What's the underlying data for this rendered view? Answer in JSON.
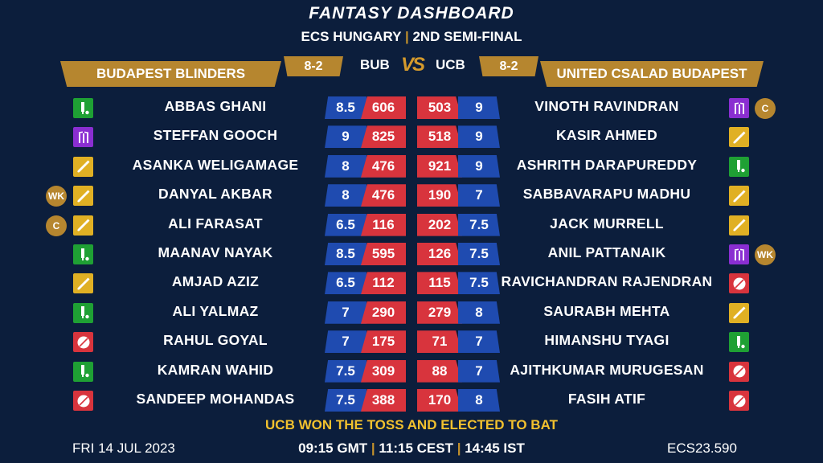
{
  "header": {
    "title": "FANTASY DASHBOARD",
    "event": "ECS HUNGARY",
    "separator": "|",
    "stage": "2ND SEMI-FINAL"
  },
  "colors": {
    "background": "#0c1e3c",
    "gold": "#b6862f",
    "credit_blue": "#1f4bb0",
    "points_red": "#d8343d",
    "toss_yellow": "#f2c12e",
    "role_batter": "#e0b024",
    "role_bowler": "#d8343d",
    "role_allrounder": "#1fa034",
    "role_keeper": "#8a2ed1"
  },
  "teams": {
    "left": {
      "name": "BUDAPEST BLINDERS",
      "abbr": "BUB",
      "record": "8-2"
    },
    "right": {
      "name": "UNITED CSALAD BUDAPEST",
      "abbr": "UCB",
      "record": "8-2"
    },
    "vs": "VS"
  },
  "rows": [
    {
      "l_role": "allrounder",
      "l_badge": "",
      "l_name": "ABBAS GHANI",
      "l_credit": "8.5",
      "l_points": "606",
      "r_points": "503",
      "r_credit": "9",
      "r_name": "VINOTH RAVINDRAN",
      "r_role": "keeper",
      "r_badge": "C"
    },
    {
      "l_role": "keeper",
      "l_badge": "",
      "l_name": "STEFFAN GOOCH",
      "l_credit": "9",
      "l_points": "825",
      "r_points": "518",
      "r_credit": "9",
      "r_name": "KASIR AHMED",
      "r_role": "batter",
      "r_badge": ""
    },
    {
      "l_role": "batter",
      "l_badge": "",
      "l_name": "ASANKA WELIGAMAGE",
      "l_credit": "8",
      "l_points": "476",
      "r_points": "921",
      "r_credit": "9",
      "r_name": "ASHRITH DARAPUREDDY",
      "r_role": "allrounder",
      "r_badge": ""
    },
    {
      "l_role": "batter",
      "l_badge": "WK",
      "l_name": "DANYAL AKBAR",
      "l_credit": "8",
      "l_points": "476",
      "r_points": "190",
      "r_credit": "7",
      "r_name": "SABBAVARAPU MADHU",
      "r_role": "batter",
      "r_badge": ""
    },
    {
      "l_role": "batter",
      "l_badge": "C",
      "l_name": "ALI FARASAT",
      "l_credit": "6.5",
      "l_points": "116",
      "r_points": "202",
      "r_credit": "7.5",
      "r_name": "JACK MURRELL",
      "r_role": "batter",
      "r_badge": ""
    },
    {
      "l_role": "allrounder",
      "l_badge": "",
      "l_name": "MAANAV NAYAK",
      "l_credit": "8.5",
      "l_points": "595",
      "r_points": "126",
      "r_credit": "7.5",
      "r_name": "ANIL PATTANAIK",
      "r_role": "keeper",
      "r_badge": "WK"
    },
    {
      "l_role": "batter",
      "l_badge": "",
      "l_name": "AMJAD AZIZ",
      "l_credit": "6.5",
      "l_points": "112",
      "r_points": "115",
      "r_credit": "7.5",
      "r_name": "RAVICHANDRAN RAJENDRAN",
      "r_role": "bowler",
      "r_badge": ""
    },
    {
      "l_role": "allrounder",
      "l_badge": "",
      "l_name": "ALI YALMAZ",
      "l_credit": "7",
      "l_points": "290",
      "r_points": "279",
      "r_credit": "8",
      "r_name": "SAURABH MEHTA",
      "r_role": "batter",
      "r_badge": ""
    },
    {
      "l_role": "bowler",
      "l_badge": "",
      "l_name": "RAHUL GOYAL",
      "l_credit": "7",
      "l_points": "175",
      "r_points": "71",
      "r_credit": "7",
      "r_name": "HIMANSHU TYAGI",
      "r_role": "allrounder",
      "r_badge": ""
    },
    {
      "l_role": "allrounder",
      "l_badge": "",
      "l_name": "KAMRAN WAHID",
      "l_credit": "7.5",
      "l_points": "309",
      "r_points": "88",
      "r_credit": "7",
      "r_name": "AJITHKUMAR MURUGESAN",
      "r_role": "bowler",
      "r_badge": ""
    },
    {
      "l_role": "bowler",
      "l_badge": "",
      "l_name": "SANDEEP MOHANDAS",
      "l_credit": "7.5",
      "l_points": "388",
      "r_points": "170",
      "r_credit": "8",
      "r_name": "FASIH ATIF",
      "r_role": "bowler",
      "r_badge": ""
    }
  ],
  "toss": "UCB WON THE TOSS AND ELECTED TO BAT",
  "footer": {
    "date": "FRI 14 JUL 2023",
    "time_gmt": "09:15 GMT",
    "time_cest": "11:15 CEST",
    "time_ist": "14:45 IST",
    "separator": "|",
    "match_code": "ECS23.590"
  }
}
